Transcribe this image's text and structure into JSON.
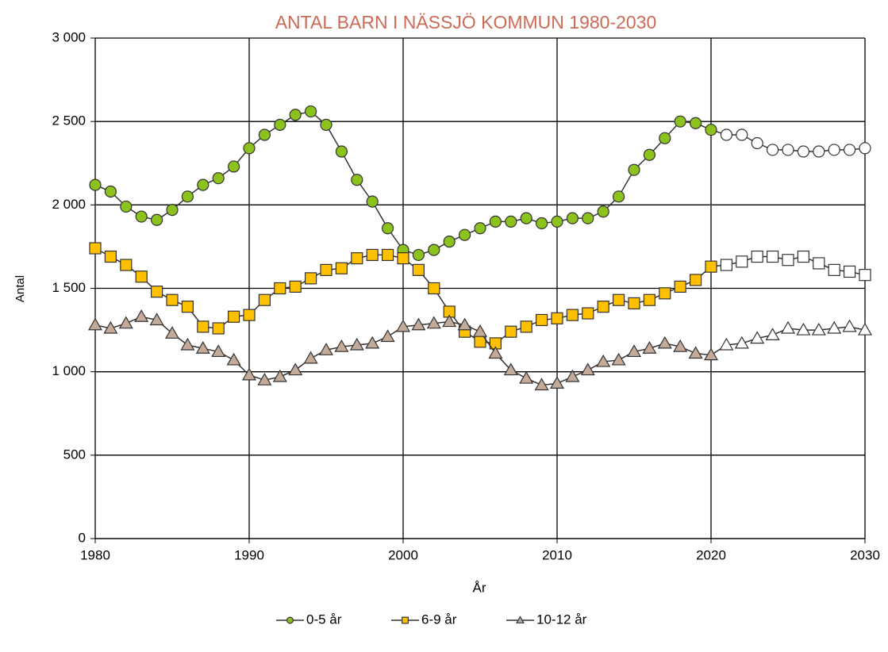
{
  "chart_data": {
    "type": "line",
    "title": "ANTAL BARN I NÄSSJÖ KOMMUN 1980-2030",
    "x_label": "År",
    "y_label": "Antal",
    "x": [
      1980,
      1981,
      1982,
      1983,
      1984,
      1985,
      1986,
      1987,
      1988,
      1989,
      1990,
      1991,
      1992,
      1993,
      1994,
      1995,
      1996,
      1997,
      1998,
      1999,
      2000,
      2001,
      2002,
      2003,
      2004,
      2005,
      2006,
      2007,
      2008,
      2009,
      2010,
      2011,
      2012,
      2013,
      2014,
      2015,
      2016,
      2017,
      2018,
      2019,
      2020,
      2021,
      2022,
      2023,
      2024,
      2025,
      2026,
      2027,
      2028,
      2029,
      2030
    ],
    "xlim": [
      1980,
      2030
    ],
    "xticks": [
      1980,
      1990,
      2000,
      2010,
      2020,
      2030
    ],
    "ylim": [
      0,
      3000
    ],
    "yticks": [
      0,
      500,
      {
        "value": 1000,
        "label": "1 000"
      },
      {
        "value": 1500,
        "label": "1 500"
      },
      {
        "value": 2000,
        "label": "2 000"
      },
      {
        "value": 2500,
        "label": "2 500"
      },
      {
        "value": 3000,
        "label": "3 000"
      }
    ],
    "grid": true,
    "legend": "bottom",
    "line_color": "#333333",
    "projection_start": 2021,
    "projection_color": "#ffffff",
    "series": [
      {
        "name": "0-5 år",
        "color": "#8cc21e",
        "marker": "circle",
        "values": [
          2120,
          2080,
          1990,
          1930,
          1910,
          1970,
          2050,
          2120,
          2160,
          2230,
          2340,
          2420,
          2480,
          2540,
          2560,
          2480,
          2320,
          2150,
          2020,
          1860,
          1730,
          1700,
          1730,
          1780,
          1820,
          1860,
          1900,
          1900,
          1920,
          1890,
          1900,
          1920,
          1920,
          1960,
          2050,
          2210,
          2300,
          2400,
          2500,
          2490,
          2450,
          2420,
          2420,
          2370,
          2330,
          2330,
          2320,
          2320,
          2330,
          2330,
          2340
        ]
      },
      {
        "name": "6-9 år",
        "color": "#ffc000",
        "marker": "square",
        "values": [
          1740,
          1690,
          1640,
          1570,
          1480,
          1430,
          1390,
          1270,
          1260,
          1330,
          1340,
          1430,
          1500,
          1510,
          1560,
          1610,
          1620,
          1680,
          1700,
          1700,
          1680,
          1610,
          1500,
          1360,
          1240,
          1180,
          1170,
          1240,
          1270,
          1310,
          1320,
          1340,
          1350,
          1390,
          1430,
          1410,
          1430,
          1470,
          1510,
          1550,
          1630,
          1640,
          1660,
          1690,
          1690,
          1670,
          1690,
          1650,
          1610,
          1600,
          1580
        ]
      },
      {
        "name": "10-12 år",
        "color": "#c4ab99",
        "marker": "triangle",
        "values": [
          1280,
          1260,
          1290,
          1330,
          1310,
          1230,
          1160,
          1140,
          1120,
          1070,
          980,
          950,
          970,
          1010,
          1080,
          1130,
          1150,
          1160,
          1170,
          1210,
          1270,
          1280,
          1290,
          1300,
          1280,
          1240,
          1110,
          1010,
          960,
          920,
          930,
          970,
          1010,
          1060,
          1070,
          1120,
          1140,
          1170,
          1150,
          1110,
          1100,
          1160,
          1170,
          1200,
          1220,
          1260,
          1250,
          1250,
          1260,
          1270,
          1250
        ]
      }
    ]
  }
}
